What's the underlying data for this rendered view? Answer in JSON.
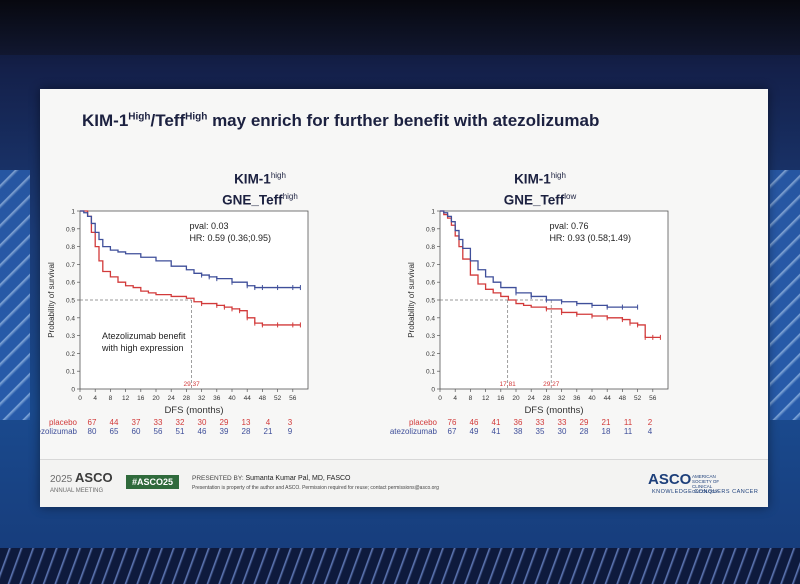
{
  "slide": {
    "title_main": "KIM-1",
    "title_sup1": "High",
    "title_mid": "/Teff",
    "title_sup2": "High",
    "title_rest": " may enrich for further benefit with atezolizumab"
  },
  "footer": {
    "meeting_year": "2025",
    "meeting_org": "ASCO",
    "meeting_name": "ANNUAL MEETING",
    "hashtag": "#ASCO25",
    "presented_by": "PRESENTED BY:",
    "presenter": "Sumanta Kumar Pal, MD, FASCO",
    "property_note": "Presentation is property of the author and ASCO. Permission required for reuse; contact permissions@asco.org",
    "logo": "ASCO",
    "logo_sub": "AMERICAN SOCIETY OF CLINICAL ONCOLOGY",
    "tagline": "KNOWLEDGE CONQUERS CANCER"
  },
  "colors": {
    "placebo": "#d23a3a",
    "atezolizumab": "#3f4f9a",
    "title": "#1c2140"
  },
  "chart_data": [
    {
      "type": "line",
      "title_line1": "KIM-1",
      "title_line1_sup": "high",
      "title_line2": "GNE_Teff",
      "title_line2_sup": "high",
      "xlabel": "DFS (months)",
      "ylabel": "Probability of survival",
      "xlim": [
        0,
        60
      ],
      "ylim": [
        0,
        1
      ],
      "x_ticks": [
        0,
        4,
        8,
        12,
        16,
        20,
        24,
        28,
        32,
        36,
        40,
        44,
        48,
        52,
        56
      ],
      "y_ticks": [
        0,
        0.1,
        0.2,
        0.3,
        0.4,
        0.5,
        0.6,
        0.7,
        0.8,
        0.9,
        1
      ],
      "annotations": [
        "pval: 0.03",
        "HR: 0.59 (0.36;0.95)"
      ],
      "benefit_note": [
        "Atezolizumab benefit",
        "with high expression"
      ],
      "median_labels": [
        "29.37"
      ],
      "median_x": [
        29.37
      ],
      "series": [
        {
          "name": "placebo",
          "x": [
            0,
            2,
            3,
            4,
            5,
            6,
            8,
            10,
            12,
            14,
            16,
            18,
            20,
            24,
            28,
            30,
            32,
            36,
            38,
            40,
            42,
            44,
            46,
            48,
            52,
            56,
            58
          ],
          "y": [
            1,
            0.97,
            0.88,
            0.8,
            0.72,
            0.66,
            0.63,
            0.6,
            0.58,
            0.57,
            0.55,
            0.54,
            0.53,
            0.52,
            0.51,
            0.49,
            0.48,
            0.47,
            0.46,
            0.45,
            0.44,
            0.4,
            0.37,
            0.36,
            0.36,
            0.36,
            0.36
          ]
        },
        {
          "name": "atezolizumab",
          "x": [
            0,
            1,
            2,
            3,
            4,
            5,
            6,
            8,
            10,
            12,
            16,
            20,
            24,
            28,
            30,
            32,
            34,
            36,
            40,
            44,
            46,
            48,
            52,
            56,
            58
          ],
          "y": [
            1,
            0.99,
            0.97,
            0.93,
            0.88,
            0.84,
            0.8,
            0.78,
            0.77,
            0.76,
            0.74,
            0.72,
            0.69,
            0.67,
            0.65,
            0.64,
            0.63,
            0.62,
            0.6,
            0.58,
            0.57,
            0.57,
            0.57,
            0.57,
            0.57
          ]
        }
      ],
      "risk_table": {
        "placebo": [
          67,
          44,
          37,
          33,
          32,
          30,
          29,
          13,
          4,
          3
        ],
        "atezolizumab": [
          80,
          65,
          60,
          56,
          51,
          46,
          39,
          28,
          21,
          9
        ]
      }
    },
    {
      "type": "line",
      "title_line1": "KIM-1",
      "title_line1_sup": "high",
      "title_line2": "GNE_Teff",
      "title_line2_sup": "low",
      "xlabel": "DFS (months)",
      "ylabel": "Probability of survival",
      "xlim": [
        0,
        60
      ],
      "ylim": [
        0,
        1
      ],
      "x_ticks": [
        0,
        4,
        8,
        12,
        16,
        20,
        24,
        28,
        32,
        36,
        40,
        44,
        48,
        52,
        56
      ],
      "y_ticks": [
        0,
        0.1,
        0.2,
        0.3,
        0.4,
        0.5,
        0.6,
        0.7,
        0.8,
        0.9,
        1
      ],
      "annotations": [
        "pval: 0.76",
        "HR: 0.93 (0.58;1.49)"
      ],
      "median_labels": [
        "17.81",
        "29.27"
      ],
      "median_x": [
        17.81,
        29.27
      ],
      "series": [
        {
          "name": "placebo",
          "x": [
            0,
            1,
            2,
            3,
            4,
            5,
            6,
            8,
            10,
            12,
            14,
            16,
            18,
            20,
            22,
            24,
            28,
            32,
            36,
            40,
            44,
            48,
            50,
            52,
            54,
            56,
            58
          ],
          "y": [
            1,
            0.98,
            0.96,
            0.92,
            0.86,
            0.8,
            0.73,
            0.64,
            0.59,
            0.56,
            0.54,
            0.52,
            0.5,
            0.48,
            0.47,
            0.46,
            0.45,
            0.43,
            0.42,
            0.41,
            0.4,
            0.39,
            0.37,
            0.36,
            0.29,
            0.29,
            0.29
          ]
        },
        {
          "name": "atezolizumab",
          "x": [
            0,
            1,
            2,
            3,
            4,
            5,
            6,
            8,
            10,
            12,
            14,
            16,
            20,
            24,
            28,
            32,
            36,
            40,
            44,
            48,
            52
          ],
          "y": [
            1,
            0.99,
            0.97,
            0.94,
            0.89,
            0.84,
            0.79,
            0.72,
            0.67,
            0.63,
            0.6,
            0.57,
            0.54,
            0.52,
            0.5,
            0.49,
            0.48,
            0.47,
            0.46,
            0.46,
            0.46
          ]
        }
      ],
      "risk_table": {
        "placebo": [
          76,
          46,
          41,
          36,
          33,
          33,
          29,
          21,
          11,
          2
        ],
        "atezolizumab": [
          67,
          49,
          41,
          38,
          35,
          30,
          28,
          18,
          11,
          4
        ]
      }
    }
  ]
}
